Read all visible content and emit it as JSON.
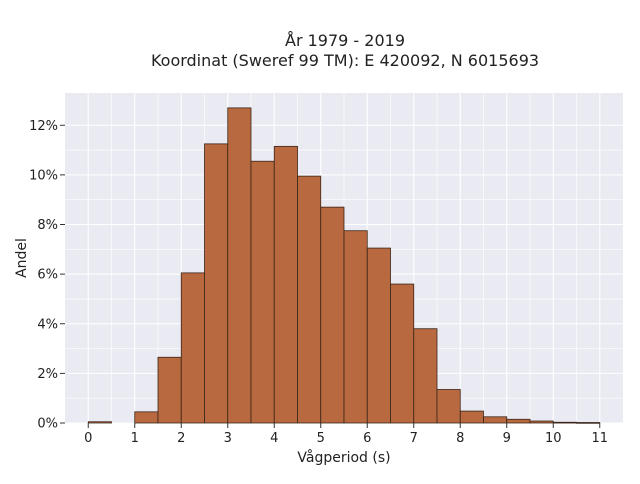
{
  "chart_data": {
    "type": "bar",
    "title": "År 1979 - 2019",
    "subtitle": "Koordinat (Sweref 99 TM): E 420092, N 6015693",
    "xlabel": "Vågperiod (s)",
    "ylabel": "Andel",
    "xlim": [
      -0.5,
      11.5
    ],
    "ylim": [
      0,
      13.3
    ],
    "x_ticks": [
      0,
      1,
      2,
      3,
      4,
      5,
      6,
      7,
      8,
      9,
      10,
      11
    ],
    "y_ticks": [
      0,
      2,
      4,
      6,
      8,
      10,
      12
    ],
    "y_tick_suffix": "%",
    "bin_width": 0.5,
    "bins": [
      {
        "start": 0.0,
        "end": 0.5,
        "value": 0.05
      },
      {
        "start": 0.5,
        "end": 1.0,
        "value": 0.0
      },
      {
        "start": 1.0,
        "end": 1.5,
        "value": 0.45
      },
      {
        "start": 1.5,
        "end": 2.0,
        "value": 2.65
      },
      {
        "start": 2.0,
        "end": 2.5,
        "value": 6.05
      },
      {
        "start": 2.5,
        "end": 3.0,
        "value": 11.25
      },
      {
        "start": 3.0,
        "end": 3.5,
        "value": 12.7
      },
      {
        "start": 3.5,
        "end": 4.0,
        "value": 10.55
      },
      {
        "start": 4.0,
        "end": 4.5,
        "value": 11.15
      },
      {
        "start": 4.5,
        "end": 5.0,
        "value": 9.95
      },
      {
        "start": 5.0,
        "end": 5.5,
        "value": 8.7
      },
      {
        "start": 5.5,
        "end": 6.0,
        "value": 7.75
      },
      {
        "start": 6.0,
        "end": 6.5,
        "value": 7.05
      },
      {
        "start": 6.5,
        "end": 7.0,
        "value": 5.6
      },
      {
        "start": 7.0,
        "end": 7.5,
        "value": 3.8
      },
      {
        "start": 7.5,
        "end": 8.0,
        "value": 1.35
      },
      {
        "start": 8.0,
        "end": 8.5,
        "value": 0.48
      },
      {
        "start": 8.5,
        "end": 9.0,
        "value": 0.25
      },
      {
        "start": 9.0,
        "end": 9.5,
        "value": 0.15
      },
      {
        "start": 9.5,
        "end": 10.0,
        "value": 0.08
      },
      {
        "start": 10.0,
        "end": 10.5,
        "value": 0.03
      },
      {
        "start": 10.5,
        "end": 11.0,
        "value": 0.02
      }
    ],
    "grid": true,
    "colors": {
      "bar_fill": "#b8693f",
      "bar_edge": "#3a2518",
      "plot_background": "#eaeaf2",
      "grid": "#ffffff"
    }
  }
}
